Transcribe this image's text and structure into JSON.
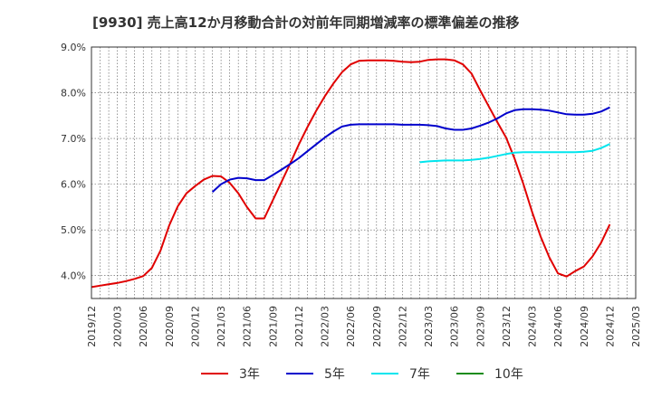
{
  "page": {
    "title": "[9930]  売上高12か月移動合計の対前年同期増減率の標準偏差の推移"
  },
  "chart_data": {
    "type": "line",
    "title": "[9930]  売上高12か月移動合計の対前年同期増減率の標準偏差の推移",
    "xlabel": "",
    "ylabel": "",
    "x_ticks": [
      "2019/12",
      "2020/03",
      "2020/06",
      "2020/09",
      "2020/12",
      "2021/03",
      "2021/06",
      "2021/09",
      "2021/12",
      "2022/03",
      "2022/06",
      "2022/09",
      "2022/12",
      "2023/03",
      "2023/06",
      "2023/09",
      "2023/12",
      "2024/03",
      "2024/06",
      "2024/09",
      "2024/12",
      "2025/03"
    ],
    "x_range": [
      "2019/12",
      "2025/03"
    ],
    "ylim": [
      3.5,
      9.0
    ],
    "y_ticks": [
      4.0,
      5.0,
      6.0,
      7.0,
      8.0,
      9.0
    ],
    "y_tick_labels": [
      "4.0%",
      "5.0%",
      "6.0%",
      "7.0%",
      "8.0%",
      "9.0%"
    ],
    "grid": true,
    "legend_position": "bottom",
    "series": [
      {
        "name": "3年",
        "color": "#e00000",
        "points": [
          [
            "2019/12",
            3.75
          ],
          [
            "2020/01",
            3.78
          ],
          [
            "2020/02",
            3.81
          ],
          [
            "2020/03",
            3.84
          ],
          [
            "2020/04",
            3.88
          ],
          [
            "2020/05",
            3.93
          ],
          [
            "2020/06",
            3.99
          ],
          [
            "2020/07",
            4.17
          ],
          [
            "2020/08",
            4.55
          ],
          [
            "2020/09",
            5.1
          ],
          [
            "2020/10",
            5.52
          ],
          [
            "2020/11",
            5.8
          ],
          [
            "2020/12",
            5.96
          ],
          [
            "2021/01",
            6.1
          ],
          [
            "2021/02",
            6.18
          ],
          [
            "2021/03",
            6.17
          ],
          [
            "2021/04",
            6.03
          ],
          [
            "2021/05",
            5.8
          ],
          [
            "2021/06",
            5.5
          ],
          [
            "2021/07",
            5.25
          ],
          [
            "2021/08",
            5.25
          ],
          [
            "2021/09",
            5.65
          ],
          [
            "2021/10",
            6.05
          ],
          [
            "2021/11",
            6.45
          ],
          [
            "2021/12",
            6.87
          ],
          [
            "2021/13",
            7.25
          ],
          [
            "2022/02",
            7.6
          ],
          [
            "2022/03",
            7.92
          ],
          [
            "2022/04",
            8.2
          ],
          [
            "2022/05",
            8.45
          ],
          [
            "2022/06",
            8.62
          ],
          [
            "2022/07",
            8.7
          ],
          [
            "2022/08",
            8.71
          ],
          [
            "2022/09",
            8.71
          ],
          [
            "2022/10",
            8.71
          ],
          [
            "2022/11",
            8.7
          ],
          [
            "2022/12",
            8.68
          ],
          [
            "2023/01",
            8.67
          ],
          [
            "2023/02",
            8.68
          ],
          [
            "2023/03",
            8.72
          ],
          [
            "2023/04",
            8.73
          ],
          [
            "2023/05",
            8.73
          ],
          [
            "2023/06",
            8.71
          ],
          [
            "2023/07",
            8.62
          ],
          [
            "2023/08",
            8.42
          ],
          [
            "2023/09",
            8.05
          ],
          [
            "2023/10",
            7.7
          ],
          [
            "2023/11",
            7.35
          ],
          [
            "2023/12",
            7.02
          ],
          [
            "2024/01",
            6.55
          ],
          [
            "2024/02",
            6.0
          ],
          [
            "2024/03",
            5.4
          ],
          [
            "2024/04",
            4.85
          ],
          [
            "2024/05",
            4.4
          ],
          [
            "2024/06",
            4.05
          ],
          [
            "2024/07",
            3.98
          ],
          [
            "2024/08",
            4.1
          ],
          [
            "2024/09",
            4.2
          ],
          [
            "2024/10",
            4.42
          ],
          [
            "2024/11",
            4.72
          ],
          [
            "2024/12",
            5.12
          ]
        ]
      },
      {
        "name": "5年",
        "color": "#0000cc",
        "points": [
          [
            "2021/02",
            5.83
          ],
          [
            "2021/03",
            6.0
          ],
          [
            "2021/04",
            6.1
          ],
          [
            "2021/05",
            6.14
          ],
          [
            "2021/06",
            6.13
          ],
          [
            "2021/07",
            6.09
          ],
          [
            "2021/08",
            6.09
          ],
          [
            "2021/09",
            6.2
          ],
          [
            "2021/10",
            6.32
          ],
          [
            "2021/11",
            6.44
          ],
          [
            "2021/12",
            6.57
          ],
          [
            "2022/01",
            6.72
          ],
          [
            "2022/02",
            6.87
          ],
          [
            "2022/03",
            7.02
          ],
          [
            "2022/04",
            7.15
          ],
          [
            "2022/05",
            7.26
          ],
          [
            "2022/06",
            7.3
          ],
          [
            "2022/07",
            7.31
          ],
          [
            "2022/08",
            7.31
          ],
          [
            "2022/09",
            7.31
          ],
          [
            "2022/10",
            7.31
          ],
          [
            "2022/11",
            7.31
          ],
          [
            "2022/12",
            7.3
          ],
          [
            "2023/01",
            7.3
          ],
          [
            "2023/02",
            7.3
          ],
          [
            "2023/03",
            7.29
          ],
          [
            "2023/04",
            7.27
          ],
          [
            "2023/05",
            7.22
          ],
          [
            "2023/06",
            7.19
          ],
          [
            "2023/07",
            7.19
          ],
          [
            "2023/08",
            7.22
          ],
          [
            "2023/09",
            7.28
          ],
          [
            "2023/10",
            7.35
          ],
          [
            "2023/11",
            7.44
          ],
          [
            "2023/12",
            7.55
          ],
          [
            "2024/01",
            7.62
          ],
          [
            "2024/02",
            7.64
          ],
          [
            "2024/03",
            7.64
          ],
          [
            "2024/04",
            7.63
          ],
          [
            "2024/05",
            7.61
          ],
          [
            "2024/06",
            7.57
          ],
          [
            "2024/07",
            7.53
          ],
          [
            "2024/08",
            7.52
          ],
          [
            "2024/09",
            7.52
          ],
          [
            "2024/10",
            7.54
          ],
          [
            "2024/11",
            7.59
          ],
          [
            "2024/12",
            7.68
          ]
        ]
      },
      {
        "name": "7年",
        "color": "#00e5ee",
        "points": [
          [
            "2023/02",
            6.48
          ],
          [
            "2023/03",
            6.5
          ],
          [
            "2023/04",
            6.51
          ],
          [
            "2023/05",
            6.52
          ],
          [
            "2023/06",
            6.52
          ],
          [
            "2023/07",
            6.52
          ],
          [
            "2023/08",
            6.53
          ],
          [
            "2023/09",
            6.55
          ],
          [
            "2023/10",
            6.58
          ],
          [
            "2023/11",
            6.62
          ],
          [
            "2023/12",
            6.66
          ],
          [
            "2024/01",
            6.69
          ],
          [
            "2024/02",
            6.7
          ],
          [
            "2024/03",
            6.7
          ],
          [
            "2024/04",
            6.7
          ],
          [
            "2024/05",
            6.7
          ],
          [
            "2024/06",
            6.7
          ],
          [
            "2024/07",
            6.7
          ],
          [
            "2024/08",
            6.7
          ],
          [
            "2024/09",
            6.71
          ],
          [
            "2024/10",
            6.73
          ],
          [
            "2024/11",
            6.79
          ],
          [
            "2024/12",
            6.88
          ]
        ]
      },
      {
        "name": "10年",
        "color": "#1a8c1a",
        "points": []
      }
    ]
  }
}
